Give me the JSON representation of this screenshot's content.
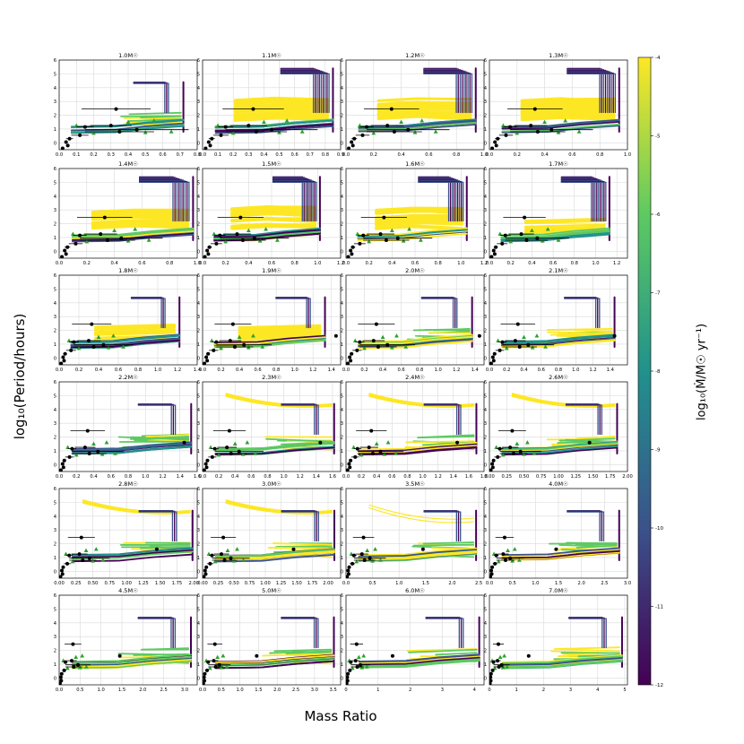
{
  "figure": {
    "ylabel": "log₁₀(Period/hours)",
    "xlabel": "Mass Ratio",
    "colorbar_label": "log₁₀(Ṁ/M☉ yr⁻¹)",
    "colorbar_ticks": [
      "-4",
      "-5",
      "-6",
      "-7",
      "-8",
      "-9",
      "-10",
      "-11",
      "-12"
    ],
    "colormap": [
      "#440154",
      "#3b528b",
      "#21918c",
      "#5ec962",
      "#fde725"
    ]
  },
  "chart_data": {
    "type": "scatter",
    "grid": true,
    "ylim": [
      -0.5,
      6
    ],
    "yticks": [
      0,
      1,
      2,
      3,
      4,
      5,
      6
    ],
    "colorbar": {
      "range": [
        -12,
        -4
      ],
      "ticks": [
        -4,
        -5,
        -6,
        -7,
        -8,
        -9,
        -10,
        -11,
        -12
      ]
    },
    "observed_circles": [
      {
        "q": 0.33,
        "logP": 2.45,
        "xerr": 0.2
      },
      {
        "q": 0.15,
        "logP": 1.15,
        "xerr": 0.05
      },
      {
        "q": 0.3,
        "logP": 1.25,
        "xerr": 0.12
      },
      {
        "q": 0.45,
        "logP": 0.95,
        "xerr": 0.3
      },
      {
        "q": 0.35,
        "logP": 0.8,
        "xerr": 0.2
      },
      {
        "q": 0.12,
        "logP": 0.55,
        "xerr": 0.05
      },
      {
        "q": 0.06,
        "logP": 0.3,
        "xerr": 0.02
      },
      {
        "q": 0.04,
        "logP": 0.05,
        "xerr": 0.01
      },
      {
        "q": 0.05,
        "logP": -0.2,
        "xerr": 0.01
      },
      {
        "q": 0.02,
        "logP": -0.4,
        "xerr": 0.01
      }
    ],
    "outlier_circle": {
      "q": 1.45,
      "logP": 1.6
    },
    "observed_triangles": [
      {
        "q": 0.1,
        "logP": 1.25
      },
      {
        "q": 0.4,
        "logP": 1.5
      },
      {
        "q": 0.55,
        "logP": 1.6
      },
      {
        "q": 0.5,
        "logP": 0.75
      },
      {
        "q": 0.65,
        "logP": 0.8
      },
      {
        "q": 0.2,
        "logP": 0.7
      }
    ],
    "panels": [
      {
        "title": "1.0M☉",
        "xlim": [
          0,
          0.8
        ],
        "xticks": [
          "0.0",
          "0.1",
          "0.2",
          "0.3",
          "0.4",
          "0.5",
          "0.6",
          "0.7",
          "0.8"
        ],
        "qmax": 0.72,
        "upper": 3,
        "tall": 1,
        "long": 0
      },
      {
        "title": "1.1M☉",
        "xlim": [
          0,
          0.9
        ],
        "xticks": [
          "0.0",
          "0.1",
          "0.2",
          "0.3",
          "0.4",
          "0.5",
          "0.6",
          "0.7",
          "0.8",
          "0.9"
        ],
        "qmax": 0.85,
        "upper": 1,
        "tall": 2,
        "long": 0
      },
      {
        "title": "1.2M☉",
        "xlim": [
          0,
          1.0
        ],
        "xticks": [
          "0.0",
          "0.2",
          "0.4",
          "0.6",
          "0.8",
          "1.0"
        ],
        "qmax": 0.94,
        "upper": 1,
        "tall": 2,
        "long": 0
      },
      {
        "title": "1.3M☉",
        "xlim": [
          0,
          1.0
        ],
        "xticks": [
          "0.0",
          "0.2",
          "0.4",
          "0.6",
          "0.8",
          "1.0"
        ],
        "qmax": 0.94,
        "upper": 1,
        "tall": 2,
        "long": 0
      },
      {
        "title": "1.4M☉",
        "xlim": [
          0,
          1.0
        ],
        "xticks": [
          "0.0",
          "0.2",
          "0.4",
          "0.6",
          "0.8",
          "1.0"
        ],
        "qmax": 0.97,
        "upper": 1,
        "tall": 2,
        "long": 0
      },
      {
        "title": "1.5M☉",
        "xlim": [
          0,
          1.2
        ],
        "xticks": [
          "0.0",
          "0.2",
          "0.4",
          "0.6",
          "0.8",
          "1.0",
          "1.2"
        ],
        "qmax": 1.02,
        "upper": 1,
        "tall": 2,
        "long": 0
      },
      {
        "title": "1.6M☉",
        "xlim": [
          0,
          1.2
        ],
        "xticks": [
          "0.0",
          "0.2",
          "0.4",
          "0.6",
          "0.8",
          "1.0",
          "1.2"
        ],
        "qmax": 1.05,
        "upper": 1,
        "tall": 2,
        "long": 0
      },
      {
        "title": "1.7M☉",
        "xlim": [
          0,
          1.3
        ],
        "xticks": [
          "0.0",
          "0.2",
          "0.4",
          "0.6",
          "0.8",
          "1.0",
          "1.2"
        ],
        "qmax": 1.13,
        "upper": 2,
        "tall": 2,
        "long": 0
      },
      {
        "title": "1.8M☉",
        "xlim": [
          0,
          1.4
        ],
        "xticks": [
          "0.0",
          "0.2",
          "0.4",
          "0.6",
          "0.8",
          "1.0",
          "1.2",
          "1.4"
        ],
        "qmax": 1.22,
        "upper": 2,
        "tall": 1,
        "long": 0
      },
      {
        "title": "1.9M☉",
        "xlim": [
          0,
          1.5
        ],
        "xticks": [
          "0.0",
          "0.2",
          "0.4",
          "0.6",
          "0.8",
          "1.0",
          "1.2",
          "1.4"
        ],
        "qmax": 1.33,
        "upper": 2,
        "tall": 1,
        "long": 0
      },
      {
        "title": "2.0M☉",
        "xlim": [
          0,
          1.5
        ],
        "xticks": [
          "0.0",
          "0.2",
          "0.4",
          "0.6",
          "0.8",
          "1.0",
          "1.2",
          "1.4"
        ],
        "qmax": 1.37,
        "upper": 3,
        "tall": 1,
        "long": 0
      },
      {
        "title": "2.1M☉",
        "xlim": [
          0,
          1.6
        ],
        "xticks": [
          "0.0",
          "0.2",
          "0.4",
          "0.6",
          "0.8",
          "1.0",
          "1.2",
          "1.4"
        ],
        "qmax": 1.45,
        "upper": 3,
        "tall": 1,
        "long": 0
      },
      {
        "title": "2.2M☉",
        "xlim": [
          0,
          1.6
        ],
        "xticks": [
          "0.0",
          "0.2",
          "0.4",
          "0.6",
          "0.8",
          "1.0",
          "1.2",
          "1.4",
          "1.6"
        ],
        "qmax": 1.53,
        "upper": 3,
        "tall": 1,
        "long": 0
      },
      {
        "title": "2.3M☉",
        "xlim": [
          0,
          1.7
        ],
        "xticks": [
          "0.0",
          "0.2",
          "0.4",
          "0.6",
          "0.8",
          "1.0",
          "1.2",
          "1.4",
          "1.6"
        ],
        "qmax": 1.62,
        "upper": 3,
        "tall": 1,
        "long": 1
      },
      {
        "title": "2.4M☉",
        "xlim": [
          0,
          1.8
        ],
        "xticks": [
          "0.0",
          "0.2",
          "0.4",
          "0.6",
          "0.8",
          "1.0",
          "1.2",
          "1.4",
          "1.6",
          "1.8"
        ],
        "qmax": 1.7,
        "upper": 3,
        "tall": 1,
        "long": 1
      },
      {
        "title": "2.6M☉",
        "xlim": [
          0,
          2.0
        ],
        "xticks": [
          "0.00",
          "0.25",
          "0.50",
          "0.75",
          "1.00",
          "1.25",
          "1.50",
          "1.75",
          "2.00"
        ],
        "qmax": 1.85,
        "upper": 3,
        "tall": 1,
        "long": 1
      },
      {
        "title": "2.8M☉",
        "xlim": [
          0,
          2.05
        ],
        "xticks": [
          "0.00",
          "0.25",
          "0.50",
          "0.75",
          "1.00",
          "1.25",
          "1.50",
          "1.75",
          "2.00"
        ],
        "qmax": 1.98,
        "upper": 3,
        "tall": 1,
        "long": 1
      },
      {
        "title": "3.0M☉",
        "xlim": [
          0,
          2.2
        ],
        "xticks": [
          "0.00",
          "0.25",
          "0.50",
          "0.75",
          "1.00",
          "1.25",
          "1.50",
          "1.75",
          "2.00"
        ],
        "qmax": 2.1,
        "upper": 3,
        "tall": 1,
        "long": 1
      },
      {
        "title": "3.5M☉",
        "xlim": [
          0,
          2.6
        ],
        "xticks": [
          "0.0",
          "0.5",
          "1.0",
          "1.5",
          "2.0",
          "2.5"
        ],
        "qmax": 2.45,
        "upper": 3,
        "tall": 1,
        "long": 2
      },
      {
        "title": "4.0M☉",
        "xlim": [
          0,
          3.0
        ],
        "xticks": [
          "0.0",
          "0.5",
          "1.0",
          "1.5",
          "2.0",
          "2.5",
          "3.0"
        ],
        "qmax": 2.82,
        "upper": 3,
        "tall": 1,
        "long": 0
      },
      {
        "title": "4.5M☉",
        "xlim": [
          0,
          3.3
        ],
        "xticks": [
          "0.0",
          "0.5",
          "1.0",
          "1.5",
          "2.0",
          "2.5",
          "3.0"
        ],
        "qmax": 3.15,
        "upper": 3,
        "tall": 1,
        "long": 0
      },
      {
        "title": "5.0M☉",
        "xlim": [
          0,
          3.7
        ],
        "xticks": [
          "0.0",
          "0.5",
          "1.0",
          "1.5",
          "2.0",
          "2.5",
          "3.0",
          "3.5"
        ],
        "qmax": 3.52,
        "upper": 3,
        "tall": 1,
        "long": 0
      },
      {
        "title": "6.0M☉",
        "xlim": [
          0,
          4.3
        ],
        "xticks": [
          "0",
          "1",
          "2",
          "3",
          "4"
        ],
        "qmax": 4.15,
        "upper": 3,
        "tall": 1,
        "long": 0
      },
      {
        "title": "7.0M☉",
        "xlim": [
          0,
          5.1
        ],
        "xticks": [
          "0",
          "1",
          "2",
          "3",
          "4",
          "5"
        ],
        "qmax": 4.9,
        "upper": 3,
        "tall": 1,
        "long": 0
      }
    ]
  }
}
